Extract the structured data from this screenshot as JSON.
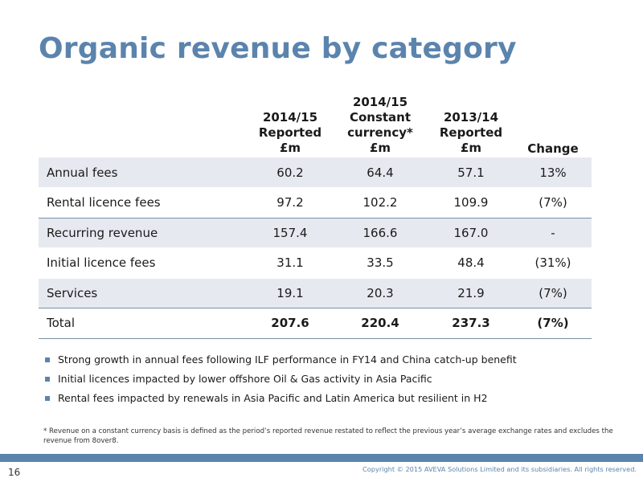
{
  "title": "Organic revenue by category",
  "table": {
    "headers": [
      "",
      "2014/15\nReported\n£m",
      "2014/15\nConstant\ncurrency*\n£m",
      "2013/14\nReported\n£m",
      "Change"
    ],
    "rows": [
      {
        "label": "Annual fees",
        "values": [
          "60.2",
          "64.4",
          "57.1",
          "13%"
        ]
      },
      {
        "label": "Rental licence fees",
        "values": [
          "97.2",
          "102.2",
          "109.9",
          "(7%)"
        ]
      },
      {
        "label": "Recurring revenue",
        "values": [
          "157.4",
          "166.6",
          "167.0",
          "-"
        ]
      },
      {
        "label": "Initial licence fees",
        "values": [
          "31.1",
          "33.5",
          "48.4",
          "(31%)"
        ]
      },
      {
        "label": "Services",
        "values": [
          "19.1",
          "20.3",
          "21.9",
          "(7%)"
        ]
      },
      {
        "label": "Total",
        "values": [
          "207.6",
          "220.4",
          "237.3",
          "(7%)"
        ]
      }
    ]
  },
  "bullets": [
    "Strong growth in annual fees following ILF performance in FY14 and China catch-up benefit",
    "Initial licences impacted by lower offshore Oil & Gas activity in Asia Pacific",
    "Rental fees impacted by renewals in Asia Pacific and Latin America but resilient in H2"
  ],
  "footnote": "* Revenue on a constant currency basis is defined as the period’s reported revenue restated to reflect the previous year’s average exchange rates and excludes the revenue from 8over8.",
  "footer": {
    "page_number": "16",
    "copyright": "Copyright © 2015 AVEVA Solutions Limited and its subsidiaries. All rights reserved."
  },
  "colors": {
    "accent": "#5b84ad",
    "row_shade": "#e6e9f0"
  }
}
